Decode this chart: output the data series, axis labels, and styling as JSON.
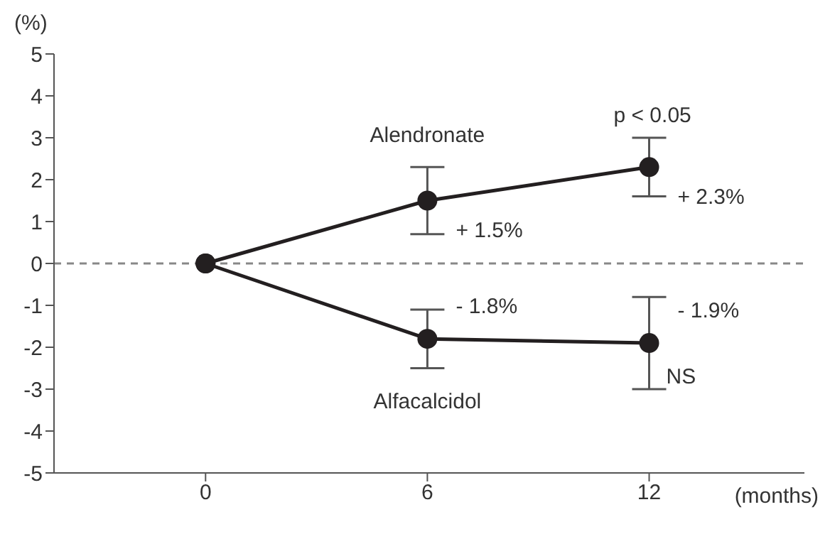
{
  "chart_data": {
    "type": "line",
    "xlabel": "(months)",
    "ylabel": "(%)",
    "x": [
      0,
      6,
      12
    ],
    "series": [
      {
        "name": "Alendronate",
        "color": "#231f20",
        "values": [
          0,
          1.5,
          2.3
        ],
        "errors": [
          null,
          0.8,
          0.7
        ],
        "value_labels": [
          null,
          "+ 1.5%",
          "+ 2.3%"
        ]
      },
      {
        "name": "Alfacalcidol",
        "color": "#231f20",
        "values": [
          0,
          -1.8,
          -1.9
        ],
        "errors": [
          null,
          0.7,
          1.1
        ],
        "value_labels": [
          null,
          "- 1.8%",
          "- 1.9%"
        ]
      }
    ],
    "xlim": [
      -4.1,
      16.2
    ],
    "xticks": [
      0,
      6,
      12
    ],
    "ylim": [
      -5,
      5
    ],
    "yticks": [
      -5,
      -4,
      -3,
      -2,
      -1,
      0,
      1,
      2,
      3,
      4,
      5
    ],
    "ref_lines": [
      {
        "axis": "y",
        "value": 0,
        "color": "#888888",
        "line_style": "dashed"
      }
    ],
    "annotations": [
      "p < 0.05",
      {
        "text": "NS",
        "x": 12,
        "y": -2.9
      }
    ],
    "grid": false,
    "legend": false,
    "marker": "circle",
    "line_style": "solid"
  }
}
